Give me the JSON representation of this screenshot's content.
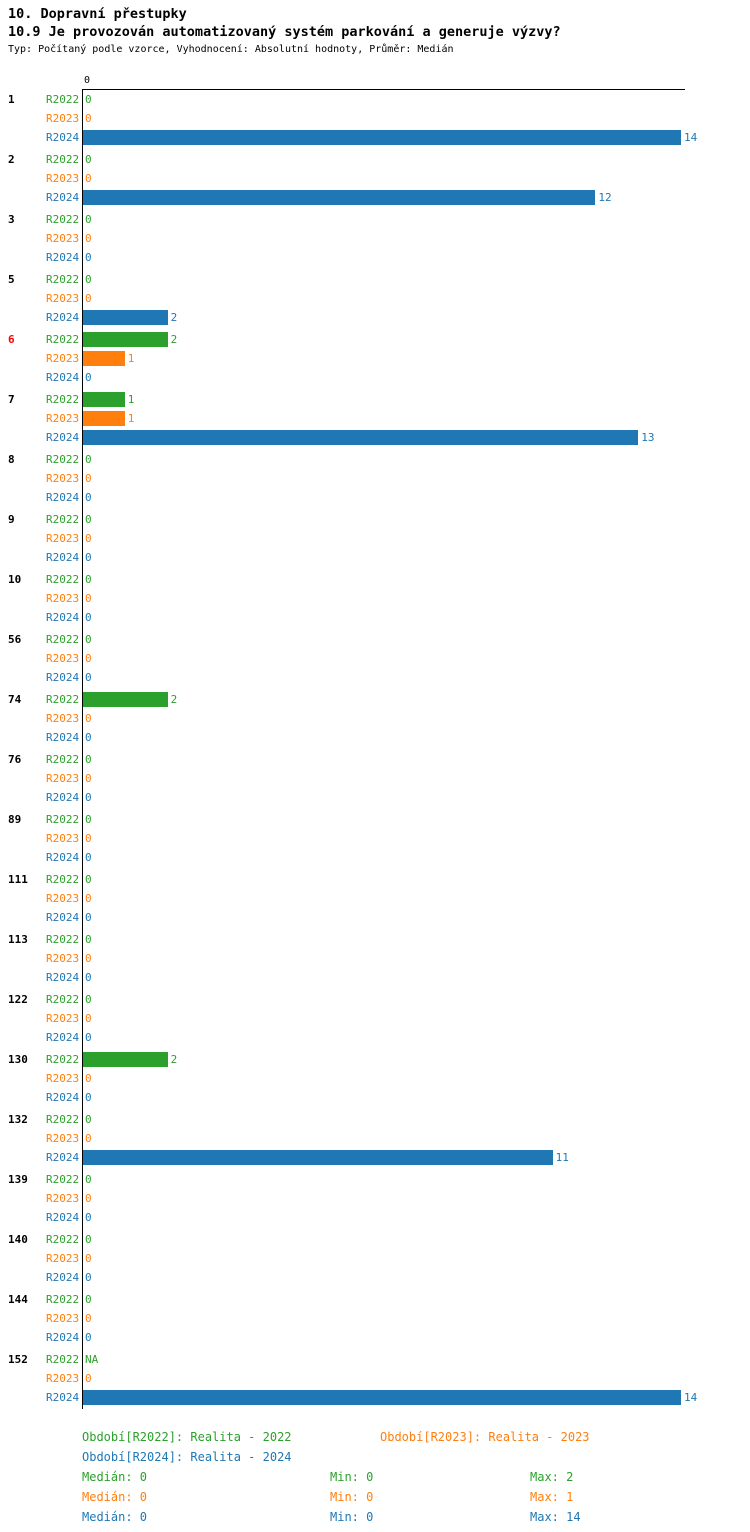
{
  "header": {
    "category_title": "10. Dopravní přestupky",
    "question_title": "10.9 Je provozován automatizovaný systém parkování a generuje výzvy?",
    "meta": "Typ: Počítaný podle vzorce, Vyhodnocení: Absolutní hodnoty, Průměr: Medián"
  },
  "chart_data": {
    "type": "bar",
    "orientation": "horizontal",
    "x_origin_label": "0",
    "xlim": [
      0,
      14
    ],
    "grid": false,
    "highlight_color": "#ff0000",
    "series": [
      {
        "name": "R2022",
        "color": "#2ca02c"
      },
      {
        "name": "R2023",
        "color": "#ff7f0e"
      },
      {
        "name": "R2024",
        "color": "#1f77b4"
      }
    ],
    "groups": [
      {
        "id": "1",
        "highlight": false,
        "values": [
          "0",
          "0",
          "14"
        ]
      },
      {
        "id": "2",
        "highlight": false,
        "values": [
          "0",
          "0",
          "12"
        ]
      },
      {
        "id": "3",
        "highlight": false,
        "values": [
          "0",
          "0",
          "0"
        ]
      },
      {
        "id": "5",
        "highlight": false,
        "values": [
          "0",
          "0",
          "2"
        ]
      },
      {
        "id": "6",
        "highlight": true,
        "values": [
          "2",
          "1",
          "0"
        ]
      },
      {
        "id": "7",
        "highlight": false,
        "values": [
          "1",
          "1",
          "13"
        ]
      },
      {
        "id": "8",
        "highlight": false,
        "values": [
          "0",
          "0",
          "0"
        ]
      },
      {
        "id": "9",
        "highlight": false,
        "values": [
          "0",
          "0",
          "0"
        ]
      },
      {
        "id": "10",
        "highlight": false,
        "values": [
          "0",
          "0",
          "0"
        ]
      },
      {
        "id": "56",
        "highlight": false,
        "values": [
          "0",
          "0",
          "0"
        ]
      },
      {
        "id": "74",
        "highlight": false,
        "values": [
          "2",
          "0",
          "0"
        ]
      },
      {
        "id": "76",
        "highlight": false,
        "values": [
          "0",
          "0",
          "0"
        ]
      },
      {
        "id": "89",
        "highlight": false,
        "values": [
          "0",
          "0",
          "0"
        ]
      },
      {
        "id": "111",
        "highlight": false,
        "values": [
          "0",
          "0",
          "0"
        ]
      },
      {
        "id": "113",
        "highlight": false,
        "values": [
          "0",
          "0",
          "0"
        ]
      },
      {
        "id": "122",
        "highlight": false,
        "values": [
          "0",
          "0",
          "0"
        ]
      },
      {
        "id": "130",
        "highlight": false,
        "values": [
          "2",
          "0",
          "0"
        ]
      },
      {
        "id": "132",
        "highlight": false,
        "values": [
          "0",
          "0",
          "11"
        ]
      },
      {
        "id": "139",
        "highlight": false,
        "values": [
          "0",
          "0",
          "0"
        ]
      },
      {
        "id": "140",
        "highlight": false,
        "values": [
          "0",
          "0",
          "0"
        ]
      },
      {
        "id": "144",
        "highlight": false,
        "values": [
          "0",
          "0",
          "0"
        ]
      },
      {
        "id": "152",
        "highlight": false,
        "values": [
          "NA",
          "0",
          "14"
        ]
      }
    ]
  },
  "legend": {
    "items": [
      {
        "label": "Období[R2022]: Realita - 2022",
        "color": "#2ca02c"
      },
      {
        "label": "Období[R2023]: Realita - 2023",
        "color": "#ff7f0e"
      },
      {
        "label": "Období[R2024]: Realita - 2024",
        "color": "#1f77b4"
      }
    ]
  },
  "stats": {
    "rows": [
      {
        "median": "Medián: 0",
        "min": "Min: 0",
        "max": "Max: 2",
        "color": "#2ca02c"
      },
      {
        "median": "Medián: 0",
        "min": "Min: 0",
        "max": "Max: 1",
        "color": "#ff7f0e"
      },
      {
        "median": "Medián: 0",
        "min": "Min: 0",
        "max": "Max: 14",
        "color": "#1f77b4"
      }
    ]
  }
}
